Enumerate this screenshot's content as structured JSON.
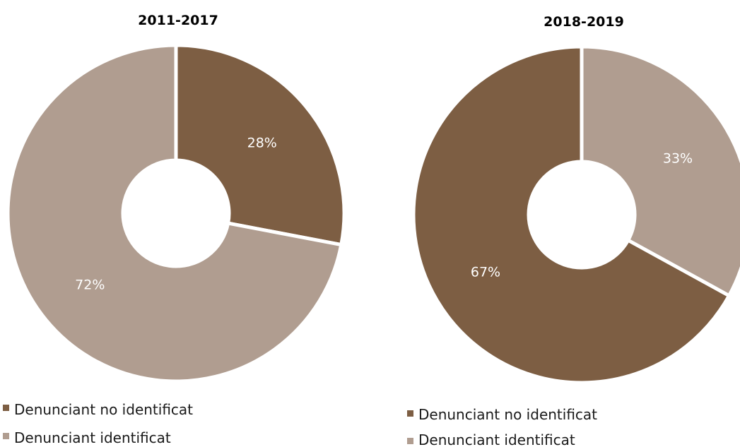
{
  "colors": {
    "no_identificat": "#7d5e43",
    "identificat": "#b09d90",
    "separator": "#ffffff",
    "label": "#ffffff"
  },
  "chart_data": [
    {
      "type": "pie",
      "title": "2011-2017",
      "slices": [
        {
          "name": "Denunciant no identificat",
          "value": 28,
          "label": "28%",
          "color": "#7d5e43"
        },
        {
          "name": "Denunciant identificat",
          "value": 72,
          "label": "72%",
          "color": "#b09d90"
        }
      ],
      "legend": [
        "Denunciant no identificat",
        "Denunciant identificat"
      ],
      "legend_position": "bottom-left"
    },
    {
      "type": "pie",
      "title": "2018-2019",
      "slices": [
        {
          "name": "Denunciant no identificat",
          "value": 67,
          "label": "67%",
          "color": "#7d5e43"
        },
        {
          "name": "Denunciant identificat",
          "value": 33,
          "label": "33%",
          "color": "#b09d90"
        }
      ],
      "legend": [
        "Denunciant no identificat",
        "Denunciant identificat"
      ],
      "legend_position": "bottom-left"
    }
  ]
}
